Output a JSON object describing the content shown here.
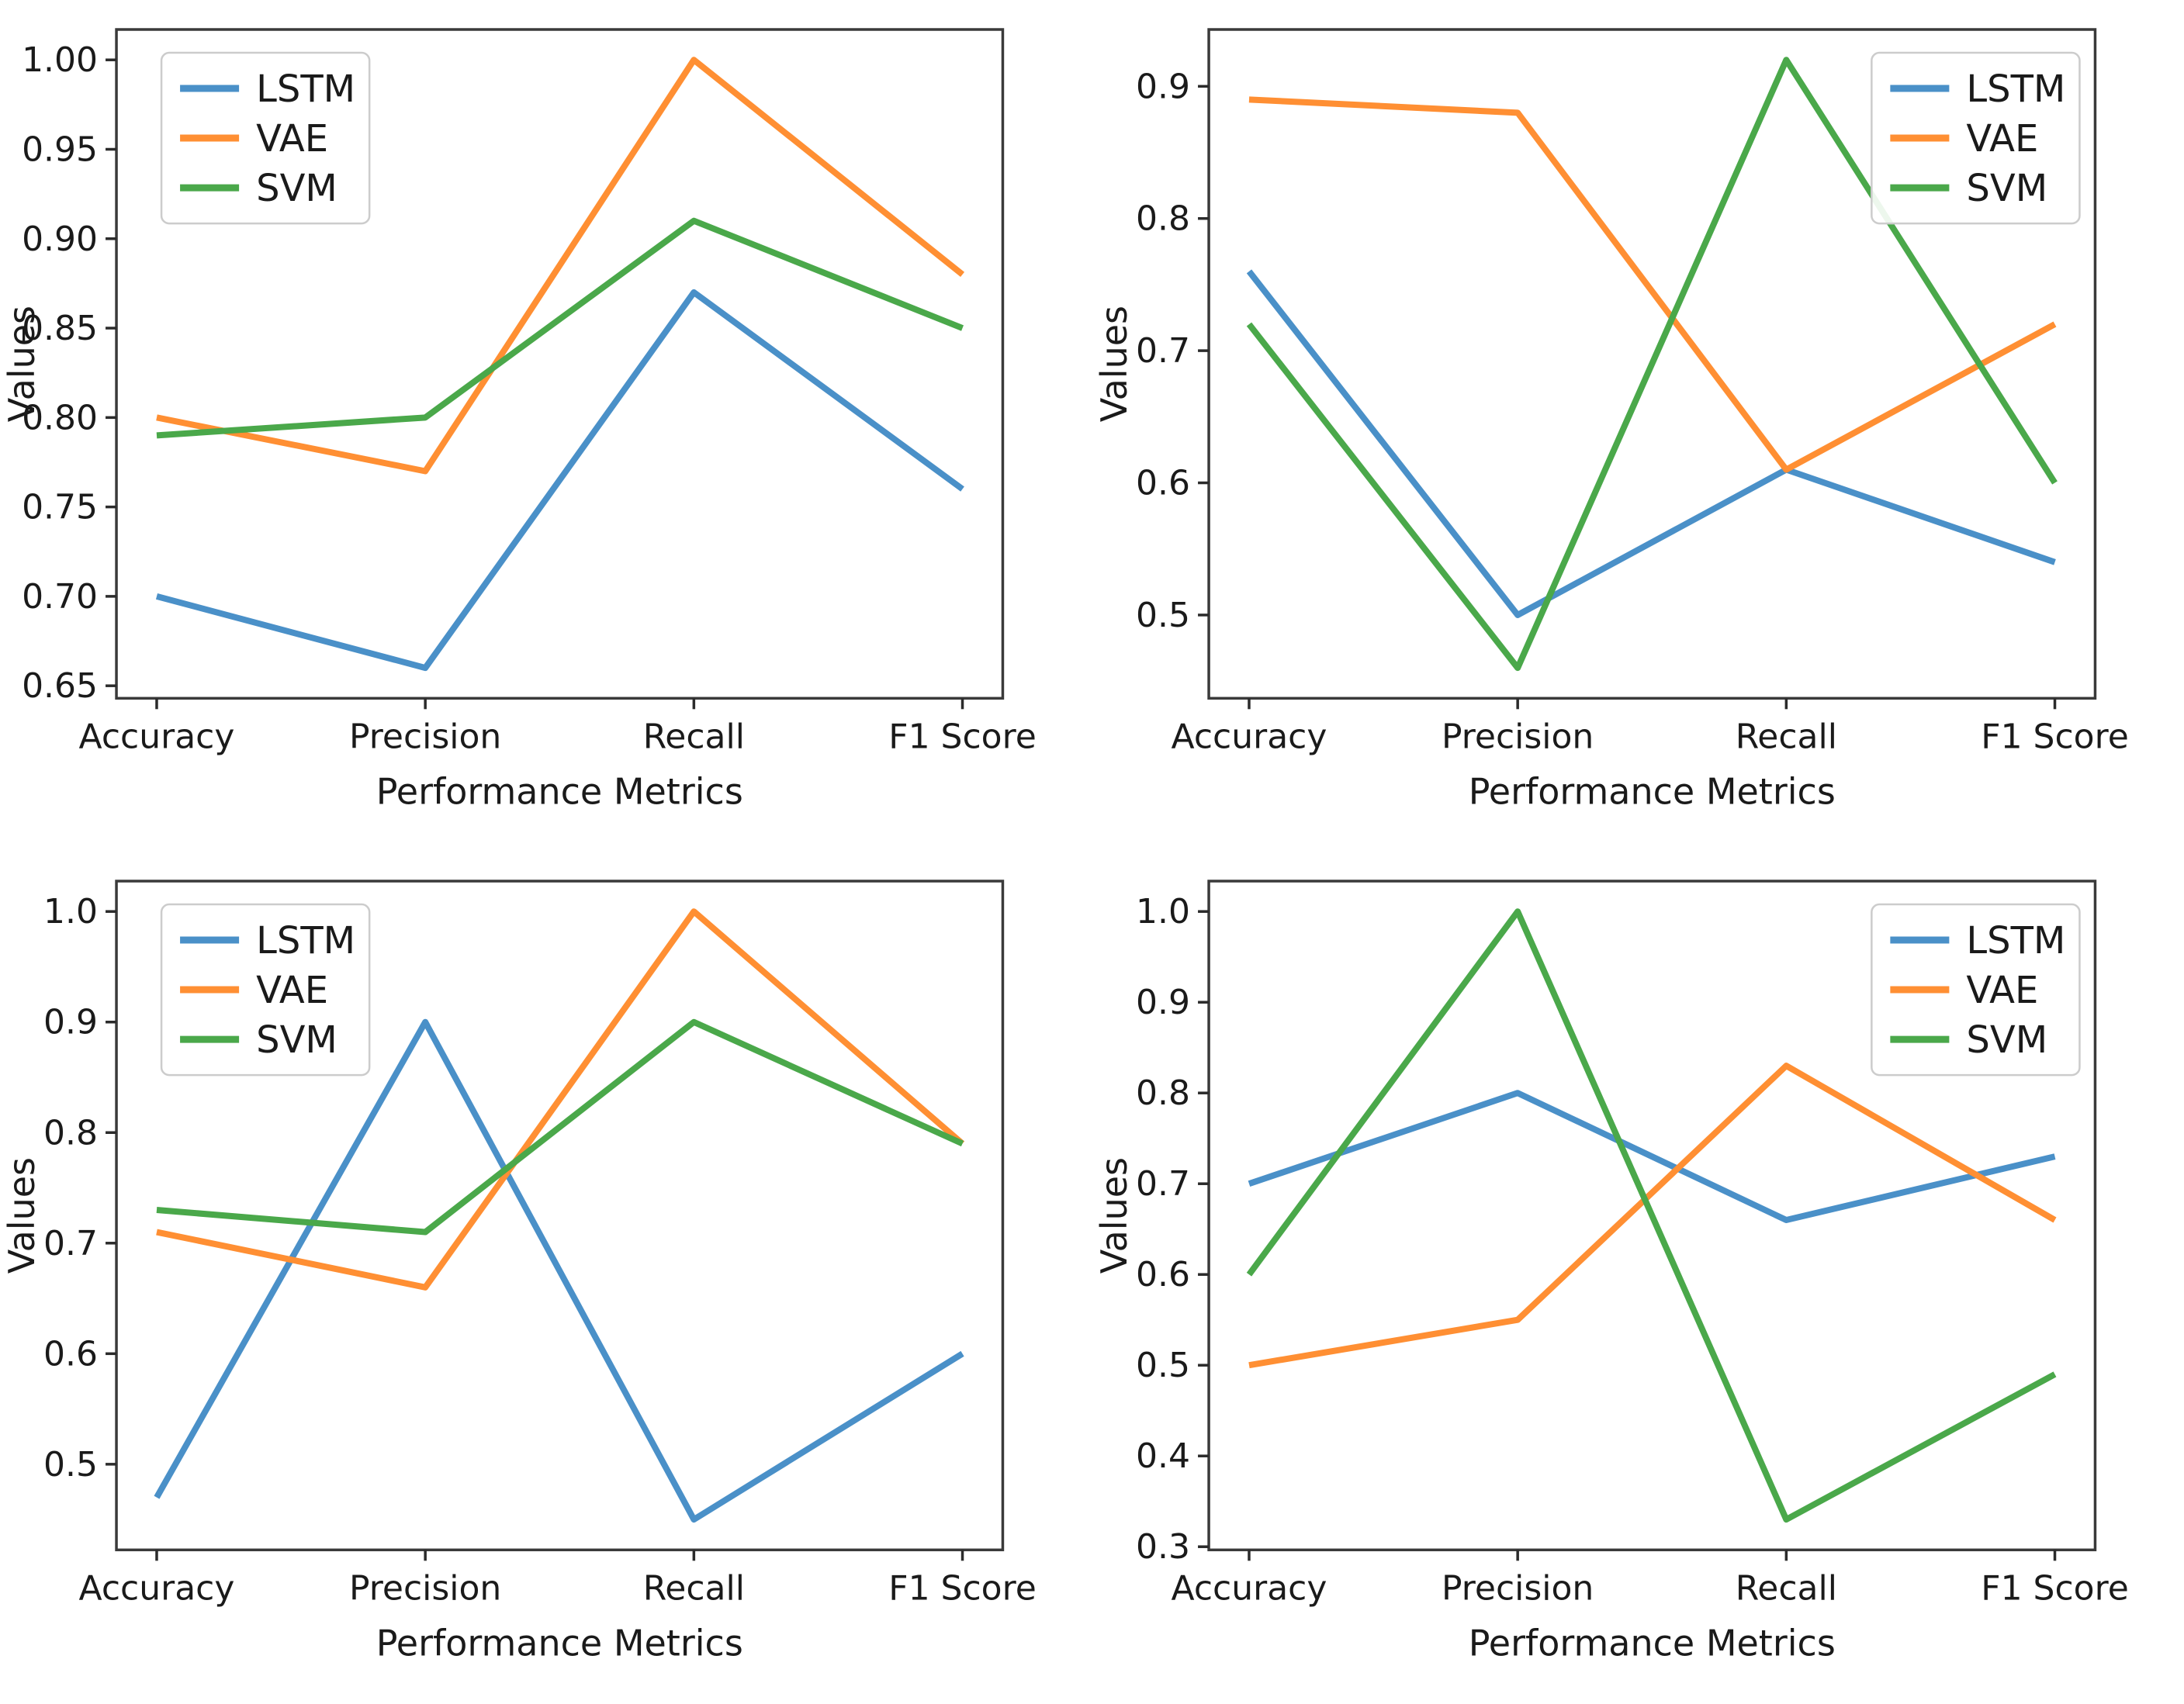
{
  "figure": {
    "background": "#ffffff",
    "rows": 2,
    "cols": 2
  },
  "chart_data": [
    {
      "type": "line",
      "position": "top-left",
      "xlabel": "Performance Metrics",
      "ylabel": "Values",
      "categories": [
        "Accuracy",
        "Precision",
        "Recall",
        "F1 Score"
      ],
      "series": [
        {
          "name": "LSTM",
          "color": "#4a90c8",
          "values": [
            0.7,
            0.66,
            0.87,
            0.76
          ]
        },
        {
          "name": "VAE",
          "color": "#ff8f33",
          "values": [
            0.8,
            0.77,
            1.0,
            0.88
          ]
        },
        {
          "name": "SVM",
          "color": "#4aa84a",
          "values": [
            0.79,
            0.8,
            0.91,
            0.85
          ]
        }
      ],
      "ylim": [
        0.643,
        1.017
      ],
      "yticks": [
        1.0,
        0.95,
        0.9,
        0.85,
        0.8,
        0.75,
        0.7,
        0.65
      ],
      "ytick_labels": [
        "1.00",
        "0.95",
        "0.90",
        "0.85",
        "0.80",
        "0.75",
        "0.70",
        "0.65"
      ],
      "legend_position": "upper-left",
      "grid": false
    },
    {
      "type": "line",
      "position": "top-right",
      "xlabel": "Performance Metrics",
      "ylabel": "Values",
      "categories": [
        "Accuracy",
        "Precision",
        "Recall",
        "F1 Score"
      ],
      "series": [
        {
          "name": "LSTM",
          "color": "#4a90c8",
          "values": [
            0.76,
            0.5,
            0.61,
            0.54
          ]
        },
        {
          "name": "VAE",
          "color": "#ff8f33",
          "values": [
            0.89,
            0.88,
            0.61,
            0.72
          ]
        },
        {
          "name": "SVM",
          "color": "#4aa84a",
          "values": [
            0.72,
            0.46,
            0.92,
            0.6
          ]
        }
      ],
      "ylim": [
        0.437,
        0.943
      ],
      "yticks": [
        0.9,
        0.8,
        0.7,
        0.6,
        0.5
      ],
      "ytick_labels": [
        "0.9",
        "0.8",
        "0.7",
        "0.6",
        "0.5"
      ],
      "legend_position": "upper-right",
      "grid": false
    },
    {
      "type": "line",
      "position": "bottom-left",
      "xlabel": "Performance Metrics",
      "ylabel": "Values",
      "categories": [
        "Accuracy",
        "Precision",
        "Recall",
        "F1 Score"
      ],
      "series": [
        {
          "name": "LSTM",
          "color": "#4a90c8",
          "values": [
            0.47,
            0.9,
            0.45,
            0.6
          ]
        },
        {
          "name": "VAE",
          "color": "#ff8f33",
          "values": [
            0.71,
            0.66,
            1.0,
            0.79
          ]
        },
        {
          "name": "SVM",
          "color": "#4aa84a",
          "values": [
            0.73,
            0.71,
            0.9,
            0.79
          ]
        }
      ],
      "ylim": [
        0.4225,
        1.0275
      ],
      "yticks": [
        1.0,
        0.9,
        0.8,
        0.7,
        0.6,
        0.5
      ],
      "ytick_labels": [
        "1.0",
        "0.9",
        "0.8",
        "0.7",
        "0.6",
        "0.5"
      ],
      "legend_position": "upper-left",
      "grid": false
    },
    {
      "type": "line",
      "position": "bottom-right",
      "xlabel": "Performance Metrics",
      "ylabel": "Values",
      "categories": [
        "Accuracy",
        "Precision",
        "Recall",
        "F1 Score"
      ],
      "series": [
        {
          "name": "LSTM",
          "color": "#4a90c8",
          "values": [
            0.7,
            0.8,
            0.66,
            0.73
          ]
        },
        {
          "name": "VAE",
          "color": "#ff8f33",
          "values": [
            0.5,
            0.55,
            0.83,
            0.66
          ]
        },
        {
          "name": "SVM",
          "color": "#4aa84a",
          "values": [
            0.6,
            1.0,
            0.33,
            0.49
          ]
        }
      ],
      "ylim": [
        0.2965,
        1.0335
      ],
      "yticks": [
        1.0,
        0.9,
        0.8,
        0.7,
        0.6,
        0.5,
        0.4,
        0.3
      ],
      "ytick_labels": [
        "1.0",
        "0.9",
        "0.8",
        "0.7",
        "0.6",
        "0.5",
        "0.4",
        "0.3"
      ],
      "legend_position": "upper-right",
      "grid": false
    }
  ],
  "style": {
    "spine_color": "#3a3a3a",
    "tick_color": "#2b2b2b",
    "text_color": "#1a1a1a",
    "legend_border_color": "#cccccc",
    "legend_background": "#ffffff"
  }
}
